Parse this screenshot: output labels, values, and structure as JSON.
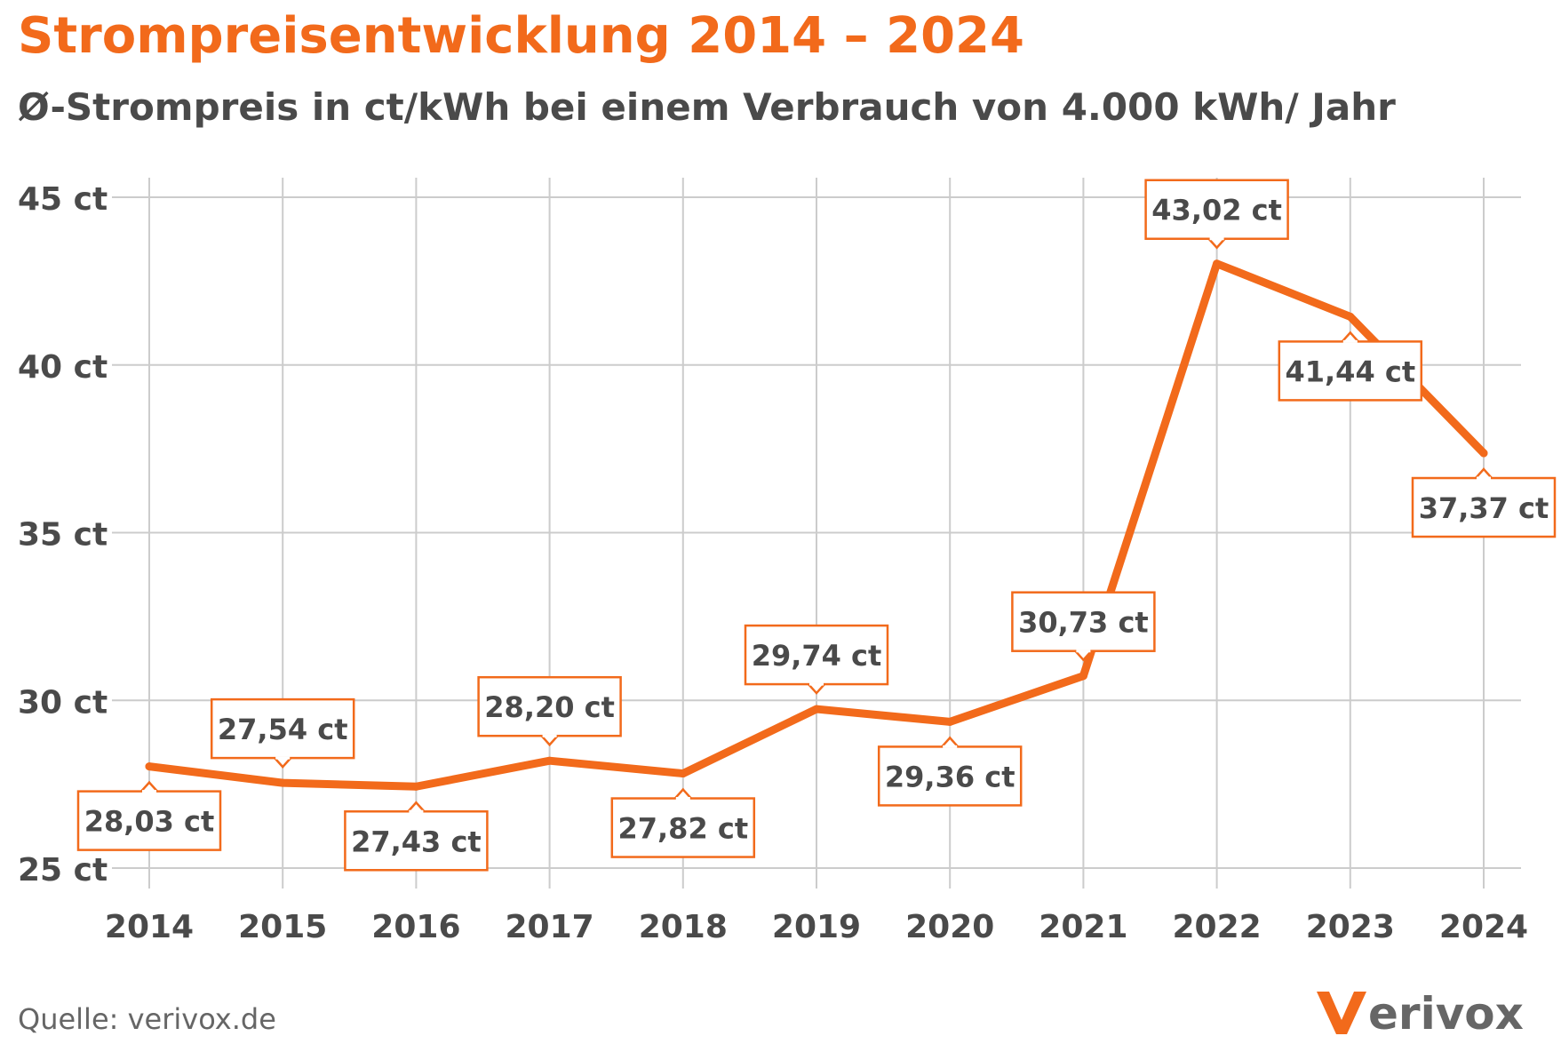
{
  "header": {
    "title": "Strompreisentwicklung 2014 – 2024",
    "subtitle": "Ø-Strompreis in ct/kWh bei einem Verbrauch von 4.000 kWh/ Jahr"
  },
  "footer": {
    "source": "Quelle: verivox.de",
    "logo_text": "erivox"
  },
  "colors": {
    "accent": "#f26a1b",
    "grid": "#cccccc",
    "text": "#4a4a4a"
  },
  "chart_data": {
    "type": "line",
    "title": "Strompreisentwicklung 2014 – 2024",
    "subtitle": "Ø-Strompreis in ct/kWh bei einem Verbrauch von 4.000 kWh/ Jahr",
    "xlabel": "",
    "ylabel": "",
    "x": [
      "2014",
      "2015",
      "2016",
      "2017",
      "2018",
      "2019",
      "2020",
      "2021",
      "2022",
      "2023",
      "2024"
    ],
    "values": [
      28.03,
      27.54,
      27.43,
      28.2,
      27.82,
      29.74,
      29.36,
      30.73,
      43.02,
      41.44,
      37.37
    ],
    "data_labels": [
      "28,03 ct",
      "27,54 ct",
      "27,43 ct",
      "28,20 ct",
      "27,82 ct",
      "29,74 ct",
      "29,36 ct",
      "30,73 ct",
      "43,02 ct",
      "41,44 ct",
      "37,37 ct"
    ],
    "label_positions": [
      "below",
      "above",
      "below",
      "above",
      "below",
      "above",
      "below",
      "above",
      "above",
      "below",
      "below"
    ],
    "ylim": [
      25,
      45
    ],
    "yticks": [
      25,
      30,
      35,
      40,
      45
    ],
    "ytick_labels": [
      "25 ct",
      "30 ct",
      "35 ct",
      "40 ct",
      "45 ct"
    ],
    "grid": true,
    "legend": "none"
  }
}
